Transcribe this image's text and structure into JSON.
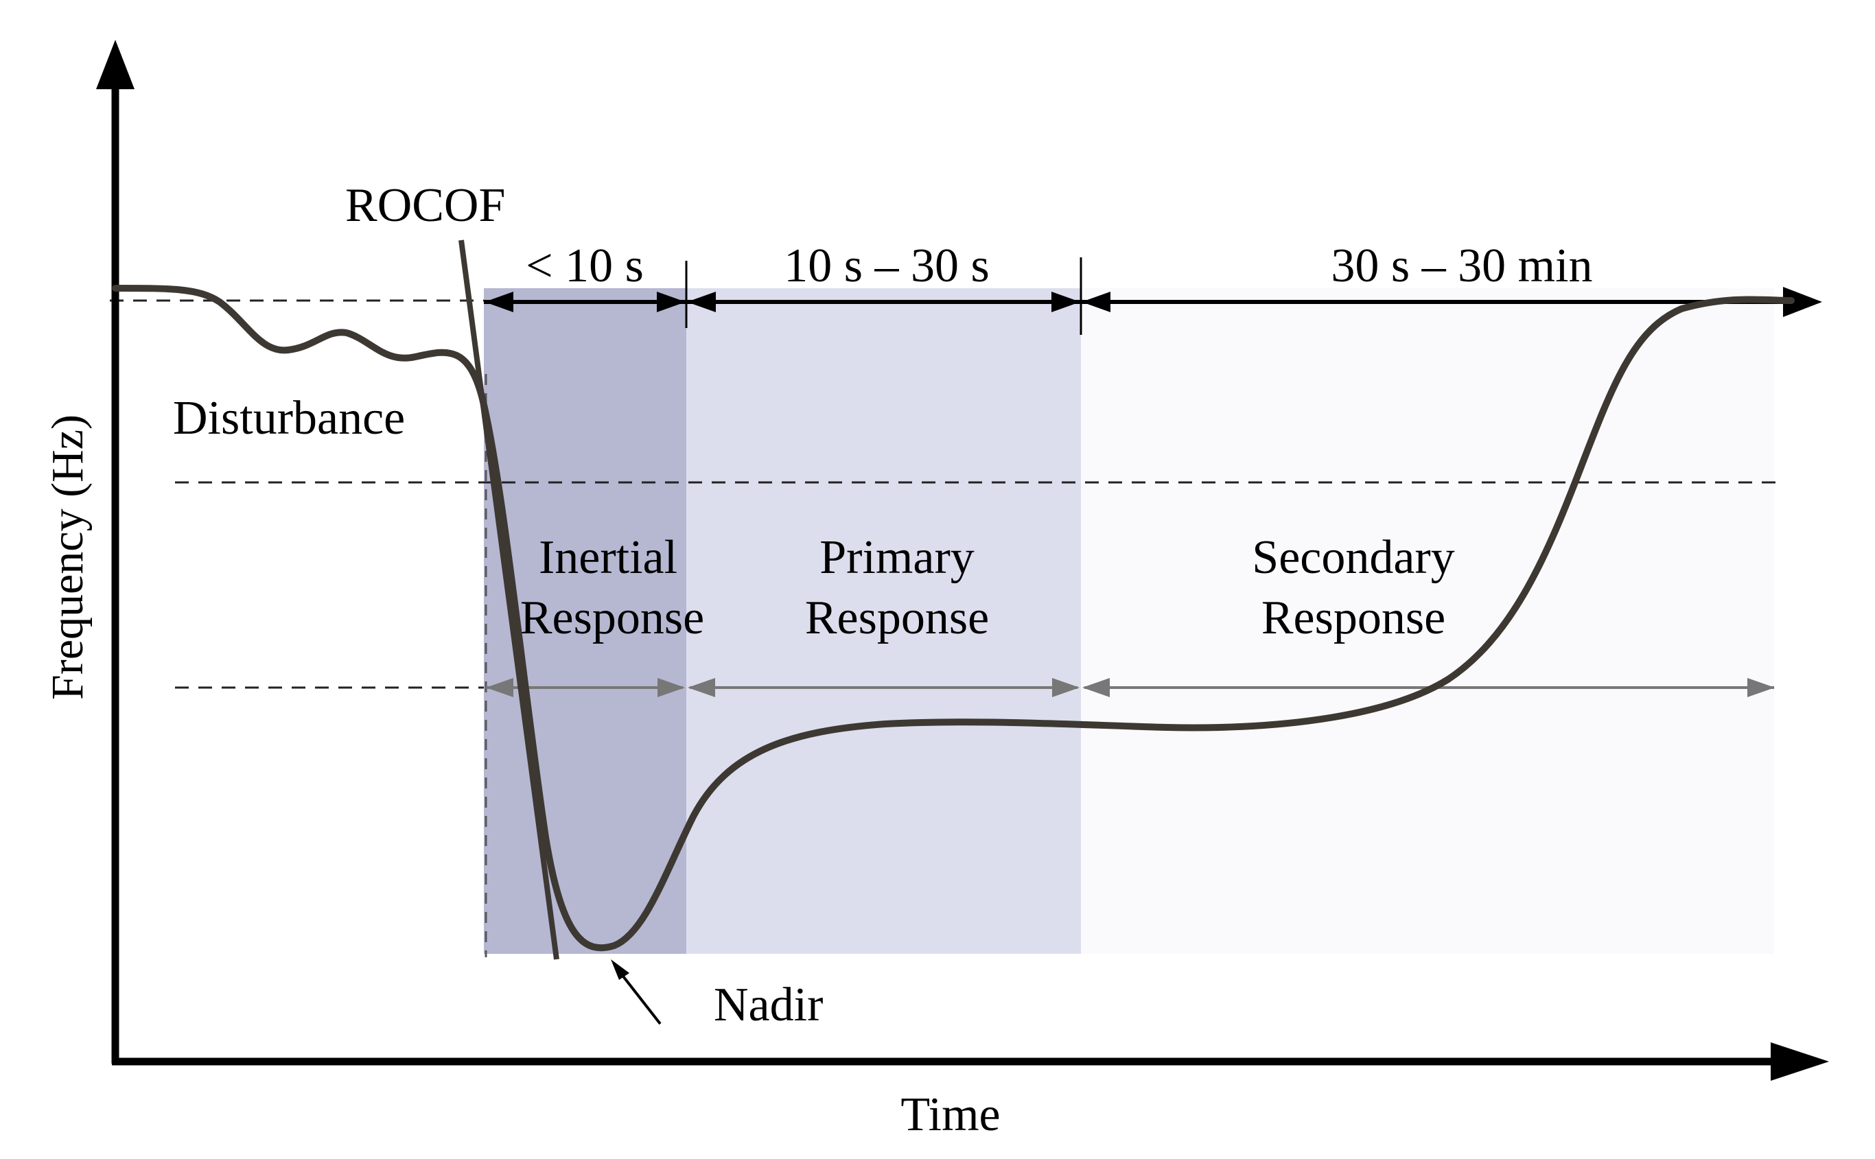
{
  "axes": {
    "x_label": "Time",
    "y_label": "Frequency (Hz)"
  },
  "labels": {
    "rocof": "ROCOF",
    "disturbance": "Disturbance",
    "nadir": "Nadir"
  },
  "phases": [
    {
      "id": "inertial",
      "duration": "< 10 s",
      "name_line1": "Inertial",
      "name_line2": "Response"
    },
    {
      "id": "primary",
      "duration": "10 s – 30 s",
      "name_line1": "Primary",
      "name_line2": "Response"
    },
    {
      "id": "secondary",
      "duration": "30 s – 30 min",
      "name_line1": "Secondary",
      "name_line2": "Response"
    }
  ],
  "colors": {
    "curve": "#3d3832",
    "axis": "#000000",
    "inertial_fill": "#b6b8d2",
    "primary_fill": "#dcdeed",
    "secondary_fill": "#fafafc",
    "inner_arrow": "#777777"
  }
}
